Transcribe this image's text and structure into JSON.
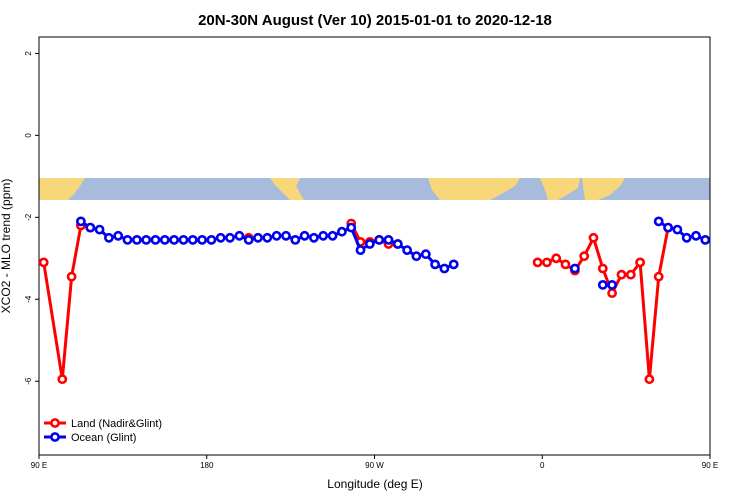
{
  "chart_data": {
    "type": "line",
    "title": "20N-30N August (Ver 10)   2015-01-01 to 2020-12-18",
    "xlabel": "Longitude (deg E)",
    "ylabel": "XCO2 - MLO trend (ppm)",
    "xlim": [
      90,
      450
    ],
    "ylim": [
      -7.8,
      2.4
    ],
    "x_ticks": [
      {
        "value": 90,
        "label": "90 E"
      },
      {
        "value": 180,
        "label": "180"
      },
      {
        "value": 270,
        "label": "90 W"
      },
      {
        "value": 360,
        "label": "0"
      },
      {
        "value": 450,
        "label": "90 E"
      },
      {
        "value": 540,
        "label": "180"
      }
    ],
    "y_ticks": [
      {
        "value": 2,
        "label": "2"
      },
      {
        "value": 0,
        "label": "0"
      },
      {
        "value": -2,
        "label": "-2"
      },
      {
        "value": -4,
        "label": "-4"
      },
      {
        "value": -6,
        "label": "-6"
      }
    ],
    "map_band": {
      "y_top": -1.0,
      "y_bottom": -1.55,
      "ocean_color": "#a7bcdc",
      "land_color": "#f7d77a"
    },
    "series": [
      {
        "name": "Land (Nadir&Glint)",
        "color": "#ff0000",
        "segments": [
          [
            [
              92.5,
              -3.1
            ],
            [
              102.5,
              -5.95
            ],
            [
              107.5,
              -3.45
            ],
            [
              112.5,
              -2.2
            ],
            [
              117.5,
              -2.25
            ]
          ],
          [
            [
              202.5,
              -2.5
            ]
          ],
          [
            [
              257.5,
              -2.15
            ],
            [
              262.5,
              -2.6
            ],
            [
              267.5,
              -2.6
            ],
            [
              272.5,
              -2.55
            ],
            [
              277.5,
              -2.65
            ],
            [
              282.5,
              -2.65
            ]
          ],
          [
            [
              357.5,
              -3.1
            ],
            [
              362.5,
              -3.1
            ],
            [
              367.5,
              -3.0
            ],
            [
              372.5,
              -3.15
            ],
            [
              377.5,
              -3.3
            ],
            [
              382.5,
              -2.95
            ],
            [
              387.5,
              -2.5
            ],
            [
              392.5,
              -3.25
            ],
            [
              397.5,
              -3.85
            ],
            [
              402.5,
              -3.4
            ],
            [
              407.5,
              -3.4
            ],
            [
              412.5,
              -3.1
            ],
            [
              417.5,
              -5.95
            ],
            [
              422.5,
              -3.45
            ],
            [
              427.5,
              -2.25
            ]
          ]
        ]
      },
      {
        "name": "Ocean (Glint)",
        "color": "#0000ee",
        "segments": [
          [
            [
              112.5,
              -2.1
            ],
            [
              117.5,
              -2.25
            ],
            [
              122.5,
              -2.3
            ],
            [
              127.5,
              -2.5
            ],
            [
              132.5,
              -2.45
            ],
            [
              137.5,
              -2.55
            ],
            [
              142.5,
              -2.55
            ],
            [
              147.5,
              -2.55
            ],
            [
              152.5,
              -2.55
            ],
            [
              157.5,
              -2.55
            ],
            [
              162.5,
              -2.55
            ],
            [
              167.5,
              -2.55
            ],
            [
              172.5,
              -2.55
            ],
            [
              177.5,
              -2.55
            ],
            [
              182.5,
              -2.55
            ],
            [
              187.5,
              -2.5
            ],
            [
              192.5,
              -2.5
            ],
            [
              197.5,
              -2.45
            ],
            [
              202.5,
              -2.55
            ],
            [
              207.5,
              -2.5
            ],
            [
              212.5,
              -2.5
            ],
            [
              217.5,
              -2.45
            ],
            [
              222.5,
              -2.45
            ],
            [
              227.5,
              -2.55
            ],
            [
              232.5,
              -2.45
            ],
            [
              237.5,
              -2.5
            ],
            [
              242.5,
              -2.45
            ],
            [
              247.5,
              -2.45
            ],
            [
              252.5,
              -2.35
            ],
            [
              257.5,
              -2.25
            ],
            [
              262.5,
              -2.8
            ],
            [
              267.5,
              -2.65
            ],
            [
              272.5,
              -2.55
            ],
            [
              277.5,
              -2.55
            ],
            [
              282.5,
              -2.65
            ],
            [
              287.5,
              -2.8
            ],
            [
              292.5,
              -2.95
            ],
            [
              297.5,
              -2.9
            ],
            [
              302.5,
              -3.15
            ],
            [
              307.5,
              -3.25
            ],
            [
              312.5,
              -3.15
            ]
          ],
          [
            [
              377.5,
              -3.25
            ]
          ],
          [
            [
              392.5,
              -3.65
            ],
            [
              397.5,
              -3.65
            ]
          ],
          [
            [
              422.5,
              -2.1
            ],
            [
              427.5,
              -2.25
            ],
            [
              432.5,
              -2.3
            ],
            [
              437.5,
              -2.5
            ],
            [
              442.5,
              -2.45
            ],
            [
              447.5,
              -2.55
            ],
            [
              452.5,
              -2.55
            ]
          ]
        ]
      }
    ],
    "legend": {
      "position": "bottom-left",
      "entries": [
        "Land (Nadir&Glint)",
        "Ocean (Glint)"
      ]
    }
  }
}
